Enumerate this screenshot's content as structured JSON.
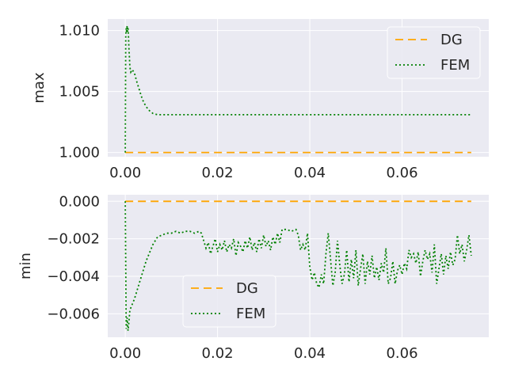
{
  "chart_data": [
    {
      "type": "line",
      "ylabel": "max",
      "xlim": [
        -0.0038,
        0.0788
      ],
      "ylim": [
        0.99965,
        1.01095
      ],
      "xticks": [
        0.0,
        0.02,
        0.04,
        0.06
      ],
      "xtick_labels": [
        "0.00",
        "0.02",
        "0.04",
        "0.06"
      ],
      "yticks": [
        1.0,
        1.005,
        1.01
      ],
      "ytick_labels": [
        "1.000",
        "1.005",
        "1.010"
      ],
      "grid": true,
      "legend": "upper right",
      "series": [
        {
          "name": "DG",
          "style": "dashed",
          "color": "#FFA500",
          "x": [
            0.0,
            0.075
          ],
          "y": [
            1.0,
            1.0
          ]
        },
        {
          "name": "FEM",
          "style": "dotted",
          "color": "#008000",
          "x": [
            0.0,
            0.0001,
            0.0002,
            0.0003,
            0.0004,
            0.0005,
            0.0006,
            0.0007,
            0.0008,
            0.0009,
            0.001,
            0.0012,
            0.0015,
            0.002,
            0.0025,
            0.003,
            0.0035,
            0.004,
            0.005,
            0.006,
            0.007,
            0.008,
            0.01,
            0.02,
            0.04,
            0.06,
            0.075
          ],
          "y": [
            1.0,
            1.0095,
            1.0102,
            1.0098,
            1.0104,
            1.0099,
            1.0102,
            1.0095,
            1.0085,
            1.0078,
            1.007,
            1.0066,
            1.0068,
            1.0065,
            1.0058,
            1.0052,
            1.0046,
            1.0041,
            1.0035,
            1.0032,
            1.0031,
            1.0031,
            1.0031,
            1.0031,
            1.0031,
            1.0031,
            1.0031
          ]
        }
      ]
    },
    {
      "type": "line",
      "ylabel": "min",
      "xlim": [
        -0.0038,
        0.0788
      ],
      "ylim": [
        -0.00725,
        0.00035
      ],
      "xticks": [
        0.0,
        0.02,
        0.04,
        0.06
      ],
      "xtick_labels": [
        "0.00",
        "0.02",
        "0.04",
        "0.06"
      ],
      "yticks": [
        0.0,
        -0.002,
        -0.004,
        -0.006
      ],
      "ytick_labels": [
        "0.000",
        "−0.002",
        "−0.004",
        "−0.006"
      ],
      "grid": true,
      "legend": "lower left",
      "series": [
        {
          "name": "DG",
          "style": "dashed",
          "color": "#FFA500",
          "x": [
            0.0,
            0.075
          ],
          "y": [
            0.0,
            0.0
          ]
        },
        {
          "name": "FEM",
          "style": "dotted",
          "color": "#008000",
          "x": [
            0.0,
            0.0002,
            0.0004,
            0.0006,
            0.0008,
            0.001,
            0.0015,
            0.002,
            0.0025,
            0.003,
            0.0035,
            0.004,
            0.0045,
            0.005,
            0.0055,
            0.006,
            0.0065,
            0.007,
            0.008,
            0.009,
            0.01,
            0.011,
            0.012,
            0.013,
            0.014,
            0.015,
            0.016,
            0.0165,
            0.017,
            0.0175,
            0.018,
            0.0185,
            0.019,
            0.0195,
            0.02,
            0.0205,
            0.021,
            0.0215,
            0.022,
            0.0225,
            0.023,
            0.0235,
            0.024,
            0.0245,
            0.025,
            0.0255,
            0.026,
            0.0265,
            0.027,
            0.0275,
            0.028,
            0.0285,
            0.029,
            0.0295,
            0.03,
            0.0305,
            0.031,
            0.0315,
            0.032,
            0.0325,
            0.033,
            0.0335,
            0.034,
            0.035,
            0.036,
            0.037,
            0.0375,
            0.038,
            0.0385,
            0.039,
            0.0395,
            0.04,
            0.0405,
            0.041,
            0.0415,
            0.042,
            0.0425,
            0.043,
            0.0435,
            0.044,
            0.0445,
            0.045,
            0.0455,
            0.046,
            0.0465,
            0.047,
            0.0475,
            0.048,
            0.0485,
            0.049,
            0.0495,
            0.05,
            0.0505,
            0.051,
            0.0515,
            0.052,
            0.0525,
            0.053,
            0.0535,
            0.054,
            0.0545,
            0.055,
            0.0555,
            0.056,
            0.0565,
            0.057,
            0.0575,
            0.058,
            0.0585,
            0.059,
            0.0595,
            0.06,
            0.0605,
            0.061,
            0.0615,
            0.062,
            0.0625,
            0.063,
            0.0635,
            0.064,
            0.0645,
            0.065,
            0.0655,
            0.066,
            0.0665,
            0.067,
            0.0675,
            0.068,
            0.0685,
            0.069,
            0.0695,
            0.07,
            0.0705,
            0.071,
            0.0715,
            0.072,
            0.0725,
            0.073,
            0.0735,
            0.074,
            0.0745,
            0.075
          ],
          "y": [
            0.0,
            -0.0068,
            -0.0062,
            -0.0069,
            -0.0064,
            -0.0058,
            -0.0055,
            -0.0052,
            -0.0048,
            -0.0044,
            -0.004,
            -0.0036,
            -0.0032,
            -0.0029,
            -0.0026,
            -0.0023,
            -0.0021,
            -0.0019,
            -0.0018,
            -0.0017,
            -0.0017,
            -0.0016,
            -0.0017,
            -0.0016,
            -0.0016,
            -0.0017,
            -0.0016,
            -0.0017,
            -0.0021,
            -0.0025,
            -0.0022,
            -0.0028,
            -0.0024,
            -0.002,
            -0.0027,
            -0.0023,
            -0.0026,
            -0.0021,
            -0.0027,
            -0.0023,
            -0.0025,
            -0.002,
            -0.0029,
            -0.0022,
            -0.0024,
            -0.0027,
            -0.0021,
            -0.0025,
            -0.0019,
            -0.0026,
            -0.0022,
            -0.0027,
            -0.002,
            -0.0025,
            -0.0018,
            -0.0024,
            -0.0021,
            -0.0026,
            -0.0019,
            -0.0023,
            -0.0017,
            -0.0022,
            -0.0015,
            -0.0015,
            -0.0016,
            -0.0015,
            -0.0018,
            -0.0026,
            -0.0023,
            -0.0026,
            -0.0017,
            -0.0035,
            -0.0042,
            -0.0038,
            -0.0044,
            -0.0046,
            -0.0039,
            -0.0044,
            -0.0028,
            -0.0017,
            -0.0031,
            -0.0045,
            -0.0038,
            -0.0021,
            -0.0034,
            -0.0044,
            -0.0039,
            -0.0026,
            -0.0043,
            -0.0031,
            -0.0041,
            -0.0026,
            -0.0045,
            -0.0036,
            -0.0028,
            -0.0044,
            -0.0032,
            -0.0039,
            -0.0029,
            -0.0041,
            -0.0035,
            -0.0042,
            -0.0033,
            -0.0038,
            -0.0025,
            -0.0044,
            -0.0041,
            -0.0032,
            -0.0044,
            -0.0037,
            -0.0034,
            -0.0039,
            -0.0033,
            -0.0036,
            -0.0026,
            -0.003,
            -0.0028,
            -0.0033,
            -0.0027,
            -0.004,
            -0.0032,
            -0.0026,
            -0.0031,
            -0.0028,
            -0.0038,
            -0.0023,
            -0.0044,
            -0.0036,
            -0.0028,
            -0.0039,
            -0.0029,
            -0.0036,
            -0.0027,
            -0.0034,
            -0.0031,
            -0.0018,
            -0.0028,
            -0.0023,
            -0.0032,
            -0.0026,
            -0.0018,
            -0.0029
          ]
        }
      ]
    }
  ]
}
